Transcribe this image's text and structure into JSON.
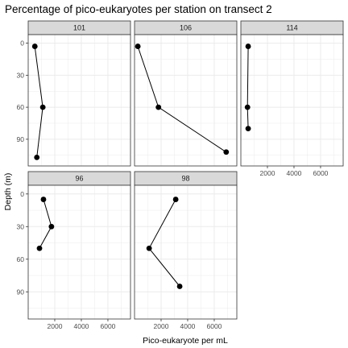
{
  "chart_data": {
    "type": "line",
    "title": "Percentage of pico-eukaryotes per station on transect 2",
    "xlabel": "Pico-eukaryote per mL",
    "ylabel": "Depth (m)",
    "xlim": [
      0,
      7700
    ],
    "ylim": [
      115,
      -8
    ],
    "y_reversed": true,
    "x_ticks": [
      2000,
      4000,
      6000
    ],
    "x_tick_labels": [
      "2000",
      "4000",
      "6000"
    ],
    "y_ticks": [
      0,
      30,
      60,
      90
    ],
    "y_tick_labels": [
      "0",
      "30",
      "60",
      "90"
    ],
    "grid": true,
    "facet_layout": "3 columns, 2 rows",
    "colors": {
      "strip_fill": "#d9d9d9",
      "panel_border": "#333333",
      "grid": "#ebebeb",
      "line": "#000000",
      "point": "#000000"
    },
    "panels": [
      {
        "label": "101",
        "points": [
          {
            "x": 500,
            "y": 3
          },
          {
            "x": 1100,
            "y": 60
          },
          {
            "x": 650,
            "y": 107
          }
        ]
      },
      {
        "label": "106",
        "points": [
          {
            "x": 250,
            "y": 3
          },
          {
            "x": 1800,
            "y": 60
          },
          {
            "x": 6900,
            "y": 102
          }
        ]
      },
      {
        "label": "114",
        "points": [
          {
            "x": 550,
            "y": 3
          },
          {
            "x": 500,
            "y": 60
          },
          {
            "x": 550,
            "y": 80
          }
        ]
      },
      {
        "label": "96",
        "points": [
          {
            "x": 1150,
            "y": 5
          },
          {
            "x": 1750,
            "y": 30
          },
          {
            "x": 850,
            "y": 50
          }
        ]
      },
      {
        "label": "98",
        "points": [
          {
            "x": 3100,
            "y": 5
          },
          {
            "x": 1100,
            "y": 50
          },
          {
            "x": 3400,
            "y": 85
          }
        ]
      }
    ]
  }
}
